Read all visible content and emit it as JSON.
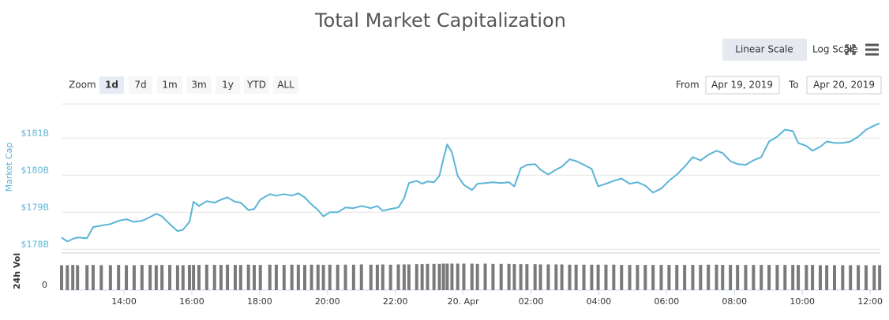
{
  "title": "Total Market Capitalization",
  "toolbar": {
    "linear": "Linear Scale",
    "log": "Log Scale"
  },
  "range_selector": {
    "zoom_label": "Zoom",
    "buttons": [
      "1d",
      "7d",
      "1m",
      "3m",
      "1y",
      "YTD",
      "ALL"
    ],
    "selected": 0,
    "from_label": "From",
    "from": "Apr 19, 2019",
    "to_label": "To",
    "to": "Apr 20, 2019"
  },
  "chart_data": {
    "type": "line",
    "ylabel": "Market Cap",
    "y2label": "24h Vol",
    "x": [
      12.16,
      12.33,
      12.49,
      12.63,
      12.91,
      13.09,
      13.33,
      13.6,
      13.84,
      14.07,
      14.3,
      14.53,
      14.77,
      14.95,
      15.12,
      15.35,
      15.58,
      15.74,
      15.93,
      16.05,
      16.21,
      16.44,
      16.67,
      16.86,
      17.05,
      17.28,
      17.44,
      17.67,
      17.84,
      18.02,
      18.3,
      18.49,
      18.72,
      18.95,
      19.14,
      19.33,
      19.53,
      19.72,
      19.88,
      20.07,
      20.3,
      20.53,
      20.77,
      21.0,
      21.28,
      21.47,
      21.63,
      21.86,
      22.09,
      22.26,
      22.4,
      22.63,
      22.79,
      22.95,
      23.14,
      23.3,
      23.42,
      23.53,
      23.67,
      23.84,
      24.02,
      24.26,
      24.42,
      24.65,
      24.88,
      25.12,
      25.35,
      25.51,
      25.7,
      25.88,
      26.12,
      26.28,
      26.51,
      26.74,
      26.91,
      27.14,
      27.33,
      27.56,
      27.79,
      27.98,
      28.21,
      28.44,
      28.67,
      28.91,
      29.14,
      29.37,
      29.6,
      29.84,
      30.07,
      30.3,
      30.53,
      30.77,
      31.0,
      31.23,
      31.47,
      31.65,
      31.88,
      32.09,
      32.33,
      32.56,
      32.79,
      33.02,
      33.26,
      33.49,
      33.72,
      33.88,
      34.12,
      34.3,
      34.53,
      34.72,
      34.95,
      35.19,
      35.42,
      35.65,
      35.88,
      36.12,
      36.28
    ],
    "series": [
      {
        "color": "#5ab4d6",
        "values": [
          178.32,
          178.21,
          178.28,
          178.32,
          178.3,
          178.6,
          178.64,
          178.68,
          178.77,
          178.81,
          178.74,
          178.77,
          178.87,
          178.96,
          178.89,
          178.68,
          178.49,
          178.53,
          178.74,
          179.28,
          179.17,
          179.3,
          179.26,
          179.34,
          179.4,
          179.28,
          179.26,
          179.06,
          179.09,
          179.34,
          179.49,
          179.45,
          179.49,
          179.45,
          179.51,
          179.4,
          179.21,
          179.06,
          178.89,
          179.0,
          179.0,
          179.13,
          179.11,
          179.17,
          179.11,
          179.17,
          179.04,
          179.09,
          179.13,
          179.38,
          179.79,
          179.85,
          179.77,
          179.83,
          179.81,
          179.98,
          180.45,
          180.83,
          180.62,
          179.98,
          179.74,
          179.6,
          179.77,
          179.79,
          179.81,
          179.79,
          179.81,
          179.7,
          180.19,
          180.28,
          180.3,
          180.15,
          180.02,
          180.15,
          180.23,
          180.43,
          180.38,
          180.28,
          180.17,
          179.7,
          179.77,
          179.85,
          179.91,
          179.77,
          179.81,
          179.72,
          179.53,
          179.64,
          179.85,
          180.02,
          180.23,
          180.49,
          180.4,
          180.55,
          180.66,
          180.6,
          180.38,
          180.3,
          180.28,
          180.4,
          180.49,
          180.91,
          181.04,
          181.23,
          181.19,
          180.87,
          180.79,
          180.66,
          180.77,
          180.91,
          180.87,
          180.87,
          180.91,
          181.04,
          181.23,
          181.34,
          181.4
        ]
      },
      {
        "type": "bar",
        "axis": "y2",
        "color": "#7a7a7a",
        "values": [
          0.96,
          0.96,
          0.97,
          0.96,
          0.96,
          0.97,
          0.96,
          0.96,
          0.97,
          0.96,
          0.96,
          0.97,
          0.97,
          0.96,
          0.97,
          0.97,
          0.96,
          0.96,
          0.97,
          0.97,
          0.97,
          0.98,
          0.97,
          0.97,
          0.98,
          0.97,
          0.97,
          0.98,
          0.97,
          0.97,
          0.98,
          0.98,
          0.97,
          0.98,
          0.98,
          0.97,
          0.98,
          0.98,
          0.97,
          0.98,
          0.98,
          0.98,
          0.98,
          0.99,
          0.98,
          0.98,
          0.99,
          0.98,
          0.99,
          0.99,
          0.99,
          1.0,
          1.0,
          1.01,
          1.01,
          1.01,
          1.02,
          1.02,
          1.02,
          1.02,
          1.02,
          1.02,
          1.01,
          1.02,
          1.01,
          1.01,
          1.01,
          1.0,
          1.0,
          1.0,
          1.0,
          0.99,
          0.99,
          0.99,
          0.99,
          0.98,
          0.98,
          0.98,
          0.98,
          0.98,
          0.98,
          0.98,
          0.97,
          0.97,
          0.97,
          0.97,
          0.97,
          0.97,
          0.97,
          0.97,
          0.97,
          0.97,
          0.97,
          0.98,
          0.98,
          0.97,
          0.97,
          0.97,
          0.97,
          0.97,
          0.97,
          0.97,
          0.97,
          0.97,
          0.97,
          0.97,
          0.97,
          0.97,
          0.96,
          0.96,
          0.96,
          0.96,
          0.96,
          0.96,
          0.96,
          0.96,
          0.96
        ]
      }
    ],
    "xlim": [
      12.16,
      36.3
    ],
    "xticks": [
      {
        "value": 14,
        "label": "14:00"
      },
      {
        "value": 16,
        "label": "16:00"
      },
      {
        "value": 18,
        "label": "18:00"
      },
      {
        "value": 20,
        "label": "20:00"
      },
      {
        "value": 22,
        "label": "22:00"
      },
      {
        "value": 24,
        "label": "20. Apr"
      },
      {
        "value": 26,
        "label": "02:00"
      },
      {
        "value": 28,
        "label": "04:00"
      },
      {
        "value": 30,
        "label": "06:00"
      },
      {
        "value": 32,
        "label": "08:00"
      },
      {
        "value": 34,
        "label": "10:00"
      },
      {
        "value": 36,
        "label": "12:00"
      }
    ],
    "ylim": [
      177.9,
      181.9
    ],
    "yticks": [
      {
        "value": 178,
        "label": "$178B"
      },
      {
        "value": 179,
        "label": "$179B"
      },
      {
        "value": 180,
        "label": "$180B"
      },
      {
        "value": 181,
        "label": "$181B"
      }
    ],
    "y2lim": [
      0,
      1.4
    ],
    "y2ticks": [
      0
    ],
    "grid": true
  }
}
